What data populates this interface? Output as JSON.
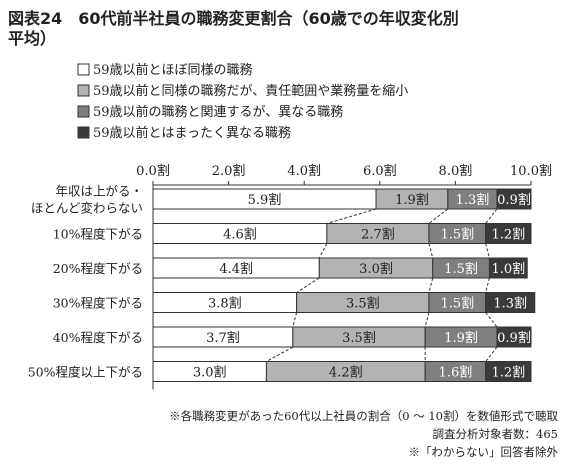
{
  "title_lines": [
    "図表24　60代前半社員の職務変更割合（60歳での年収変化別",
    "平均）"
  ],
  "chart_data": {
    "type": "bar",
    "orientation": "horizontal",
    "stacked": true,
    "title": "図表24　60代前半社員の職務変更割合（60歳での年収変化別平均）",
    "xlim": [
      0,
      10
    ],
    "x_ticks": [
      "0.0割",
      "2.0割",
      "4.0割",
      "6.0割",
      "8.0割",
      "10.0割"
    ],
    "legend_position": "top-left",
    "categories": [
      [
        "年収は上がる・",
        "ほとんど変わらない"
      ],
      [
        "10%程度下がる"
      ],
      [
        "20%程度下がる"
      ],
      [
        "30%程度下がる"
      ],
      [
        "40%程度下がる"
      ],
      [
        "50%程度以上下がる"
      ]
    ],
    "series": [
      {
        "name": "59歳以前とほぼ同様の職務",
        "color": "#ffffff",
        "label_color": "#222222",
        "values": [
          5.9,
          4.6,
          4.4,
          3.8,
          3.7,
          3.0
        ],
        "labels": [
          "5.9割",
          "4.6割",
          "4.4割",
          "3.8割",
          "3.7割",
          "3.0割"
        ]
      },
      {
        "name": "59歳以前と同様の職務だが、責任範囲や業務量を縮小",
        "color": "#b3b3b3",
        "label_color": "#222222",
        "values": [
          1.9,
          2.7,
          3.0,
          3.5,
          3.5,
          4.2
        ],
        "labels": [
          "1.9割",
          "2.7割",
          "3.0割",
          "3.5割",
          "3.5割",
          "4.2割"
        ]
      },
      {
        "name": "59歳以前の職務と関連するが、異なる職務",
        "color": "#7f7f7f",
        "label_color": "#ffffff",
        "values": [
          1.3,
          1.5,
          1.5,
          1.5,
          1.9,
          1.6
        ],
        "labels": [
          "1.3割",
          "1.5割",
          "1.5割",
          "1.5割",
          "1.9割",
          "1.6割"
        ]
      },
      {
        "name": "59歳以前とはまったく異なる職務",
        "color": "#3a3a3a",
        "label_color": "#ffffff",
        "values": [
          0.9,
          1.2,
          1.0,
          1.3,
          0.9,
          1.2
        ],
        "labels": [
          "0.9割",
          "1.2割",
          "1.0割",
          "1.3割",
          "0.9割",
          "1.2割"
        ]
      }
    ],
    "notes": [
      "※各職務変更があった60代以上社員の割合（0 ～ 10割）を数値形式で聴取",
      "調査分析対象者数：465",
      "※「わからない」回答者除外"
    ]
  }
}
